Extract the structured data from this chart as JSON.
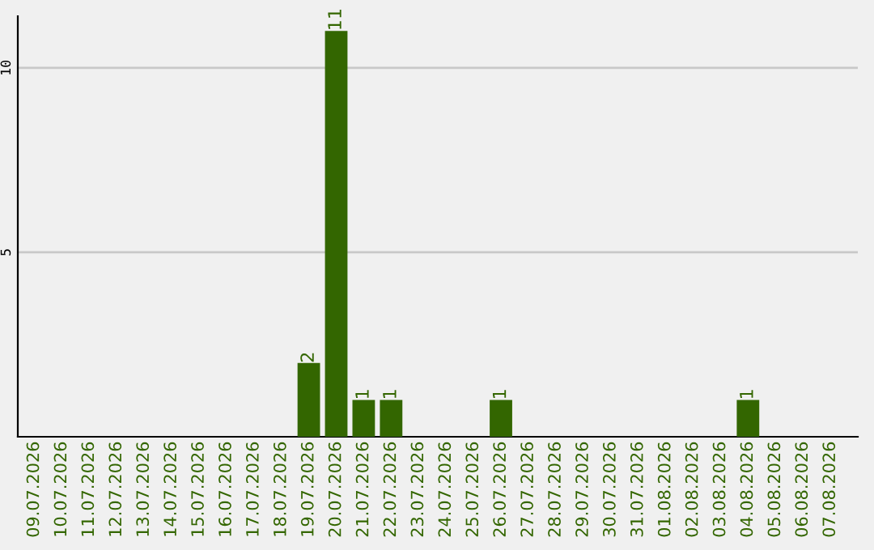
{
  "chart_data": {
    "type": "bar",
    "categories": [
      "09.07.2026",
      "10.07.2026",
      "11.07.2026",
      "12.07.2026",
      "13.07.2026",
      "14.07.2026",
      "15.07.2026",
      "16.07.2026",
      "17.07.2026",
      "18.07.2026",
      "19.07.2026",
      "20.07.2026",
      "21.07.2026",
      "22.07.2026",
      "23.07.2026",
      "24.07.2026",
      "25.07.2026",
      "26.07.2026",
      "27.07.2026",
      "28.07.2026",
      "29.07.2026",
      "30.07.2026",
      "31.07.2026",
      "01.08.2026",
      "02.08.2026",
      "03.08.2026",
      "04.08.2026",
      "05.08.2026",
      "06.08.2026",
      "07.08.2026"
    ],
    "values": [
      0,
      0,
      0,
      0,
      0,
      0,
      0,
      0,
      0,
      0,
      2,
      11,
      1,
      1,
      0,
      0,
      0,
      1,
      0,
      0,
      0,
      0,
      0,
      0,
      0,
      0,
      1,
      0,
      0,
      0
    ],
    "value_labels": [
      null,
      null,
      null,
      null,
      null,
      null,
      null,
      null,
      null,
      null,
      "2",
      "11",
      "1",
      "1",
      null,
      null,
      null,
      "1",
      null,
      null,
      null,
      null,
      null,
      null,
      null,
      null,
      "1",
      null,
      null,
      null
    ],
    "color": "#336600",
    "ylim": [
      0,
      11.4
    ],
    "yticks": [
      5,
      10
    ],
    "grid": "y",
    "legend": false
  }
}
